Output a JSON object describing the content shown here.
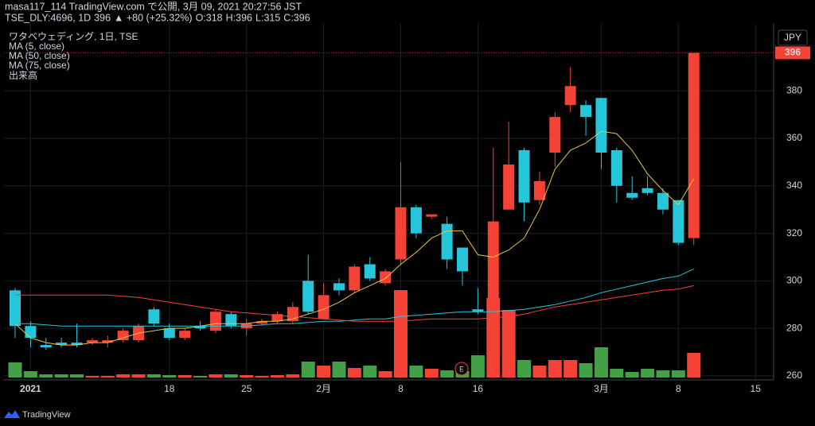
{
  "header": {
    "line1": "masa117_114 TradingView.com で公開, 3月 09, 2021 20:27:56 JST",
    "symbol": "TSE_DLY:4696, 1D",
    "price": 396,
    "change": "▲ +80 (+25.32%)",
    "ohlc": [
      {
        "label": "O:",
        "value": 318
      },
      {
        "label": "H:",
        "value": 396
      },
      {
        "label": "L:",
        "value": 315
      },
      {
        "label": "C:",
        "value": 396
      }
    ]
  },
  "footer": {
    "brand": "TradingView"
  },
  "chart_data": {
    "type": "candlestick",
    "legend_title": "ワタベウェディング, 1日, TSE",
    "currency": "JPY",
    "grid": true,
    "up_color": "#f44336",
    "down_color": "#26c6da",
    "volume_up_color": "#f44336",
    "volume_down_color": "#43a047",
    "categories": [
      null,
      "2021",
      null,
      null,
      null,
      null,
      null,
      null,
      null,
      null,
      "18",
      null,
      null,
      null,
      null,
      "25",
      null,
      null,
      null,
      null,
      "2月",
      null,
      null,
      null,
      null,
      "8",
      null,
      null,
      null,
      null,
      "16",
      null,
      null,
      null,
      null,
      null,
      null,
      null,
      "3月",
      null,
      null,
      null,
      null,
      "8",
      null,
      null,
      null,
      null,
      "15"
    ],
    "open": [
      296,
      281,
      273,
      274,
      274,
      274,
      274,
      275,
      275,
      288,
      280,
      276,
      281,
      279,
      286,
      280,
      282,
      283,
      283,
      300,
      284,
      299,
      296,
      307,
      299,
      309,
      331,
      327,
      324,
      314,
      288,
      290,
      330,
      355,
      334,
      354,
      374,
      374,
      377,
      355,
      337,
      339,
      337,
      334,
      318,
      null,
      null,
      null,
      null
    ],
    "high": [
      297,
      283,
      276,
      276,
      282,
      276,
      277,
      280,
      282,
      289,
      282,
      280,
      283,
      288,
      287,
      284,
      284,
      287,
      291,
      311,
      299,
      301,
      307,
      310,
      305,
      350,
      332,
      328,
      327,
      314,
      297,
      356,
      367,
      356,
      346,
      371,
      390,
      376,
      377,
      356,
      344,
      344,
      339,
      334,
      396,
      null,
      null,
      null,
      null
    ],
    "low": [
      276,
      272,
      271,
      272,
      272,
      273,
      272,
      274,
      274,
      281,
      275,
      275,
      279,
      278,
      280,
      277,
      281,
      282,
      282,
      286,
      284,
      294,
      295,
      300,
      298,
      307,
      318,
      326,
      305,
      298,
      286,
      287,
      330,
      325,
      332,
      348,
      371,
      361,
      347,
      333,
      334,
      336,
      328,
      315,
      315,
      null,
      null,
      null,
      null
    ],
    "close": [
      281,
      276,
      272,
      273,
      273,
      275,
      275,
      279,
      281,
      282,
      276,
      279,
      280,
      287,
      281,
      282,
      283,
      286,
      289,
      287,
      294,
      296,
      306,
      301,
      304,
      331,
      320,
      328,
      309,
      304,
      287,
      325,
      349,
      333,
      342,
      369,
      382,
      369,
      354,
      340,
      335,
      337,
      330,
      316,
      396,
      null,
      null,
      null,
      null
    ],
    "volume": [
      19,
      8,
      4,
      4,
      4,
      2,
      2,
      4,
      4,
      4,
      3,
      3,
      2,
      4,
      4,
      3,
      2,
      3,
      4,
      20,
      15,
      20,
      12,
      15,
      8,
      110,
      15,
      11,
      9,
      8,
      28,
      100,
      85,
      22,
      15,
      22,
      22,
      18,
      38,
      11,
      7,
      11,
      9,
      9,
      31,
      null,
      null,
      null,
      null
    ],
    "series": [
      {
        "name": "MA (5, close)",
        "color": "#e8c547",
        "values": [
          282,
          276,
          274,
          273,
          273,
          274,
          274,
          276,
          278,
          279,
          280,
          280,
          281,
          282,
          282,
          282,
          283,
          283,
          284,
          286,
          288,
          291,
          295,
          298,
          301,
          307,
          312,
          318,
          321,
          321,
          311,
          310,
          313,
          318,
          330,
          347,
          355,
          358,
          363,
          362,
          355,
          345,
          338,
          332,
          343,
          null,
          null,
          null,
          null
        ]
      },
      {
        "name": "MA (50, close)",
        "color": "#26c6da",
        "values": [
          282,
          282,
          281.5,
          281,
          281,
          281,
          281,
          281,
          281,
          281,
          281,
          281,
          281,
          281,
          281,
          281,
          281.5,
          282,
          282,
          282.5,
          283,
          283,
          283.5,
          284,
          284,
          285,
          285.5,
          286,
          286.5,
          287,
          287,
          287,
          287.5,
          288,
          289,
          290,
          291.5,
          293,
          295,
          296.5,
          298,
          299.5,
          301,
          302,
          305,
          null,
          null,
          null,
          null
        ]
      },
      {
        "name": "MA (75, close)",
        "color": "#f44336",
        "values": [
          294,
          294,
          294,
          294,
          294,
          294,
          294,
          293.5,
          293,
          292,
          291,
          290,
          289,
          288,
          287,
          286.5,
          286,
          285.5,
          285,
          284.5,
          284,
          283.5,
          283,
          283,
          283,
          283,
          283.5,
          284,
          284,
          284,
          284,
          284.5,
          285,
          286,
          287.5,
          289,
          290,
          291,
          292,
          293,
          294,
          295,
          296,
          296.5,
          298,
          null,
          null,
          null,
          null
        ]
      }
    ],
    "volume_name": "出来高",
    "annotation": "E",
    "ylim": [
      258.3,
      408.2
    ],
    "yticks": [
      260,
      280,
      300,
      320,
      340,
      360,
      380
    ]
  }
}
